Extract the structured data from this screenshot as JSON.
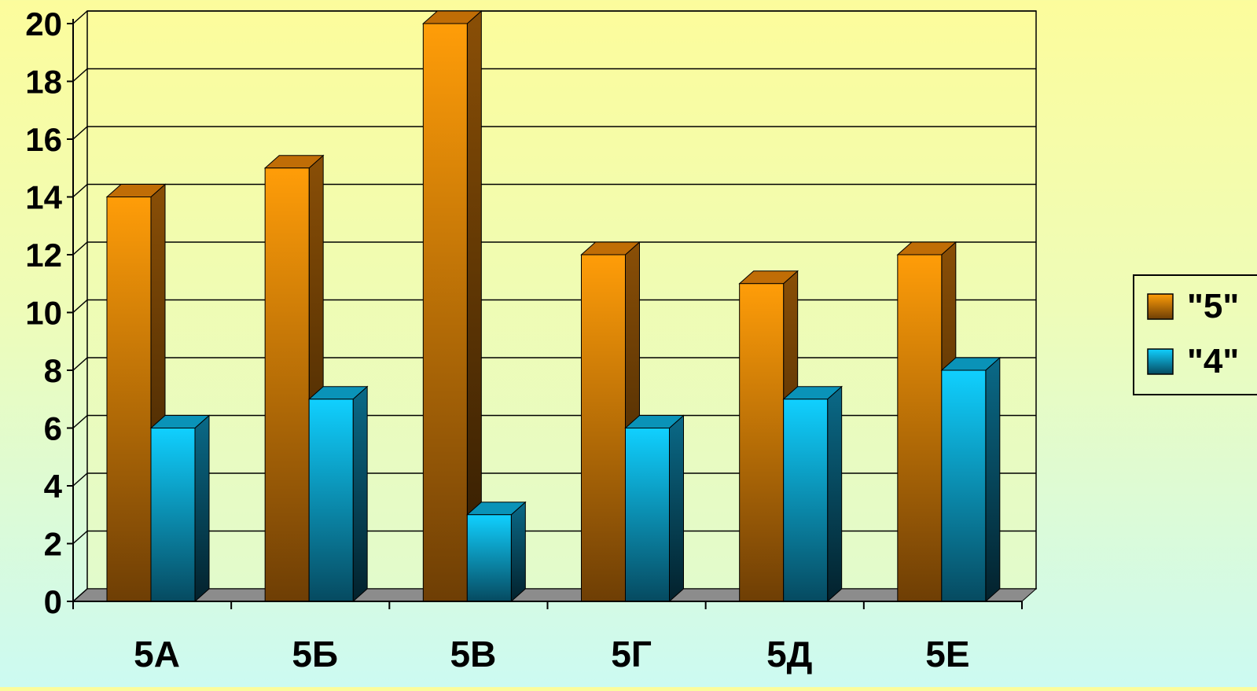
{
  "chart_data": {
    "type": "bar",
    "categories": [
      "5А",
      "5Б",
      "5В",
      "5Г",
      "5Д",
      "5Е"
    ],
    "series": [
      {
        "name": "\"5\"",
        "values": [
          14,
          15,
          20,
          12,
          11,
          12
        ],
        "color": "#f39a0a"
      },
      {
        "name": "\"4\"",
        "values": [
          6,
          7,
          3,
          6,
          7,
          8
        ],
        "color": "#0ec8f5"
      }
    ],
    "ylim": [
      0,
      20
    ],
    "yticks": [
      "0",
      "2",
      "4",
      "6",
      "8",
      "10",
      "12",
      "14",
      "16",
      "18",
      "20"
    ],
    "title": "",
    "xlabel": "",
    "ylabel": "",
    "grid": true,
    "legend_position": "right",
    "style": "3d-columns"
  }
}
